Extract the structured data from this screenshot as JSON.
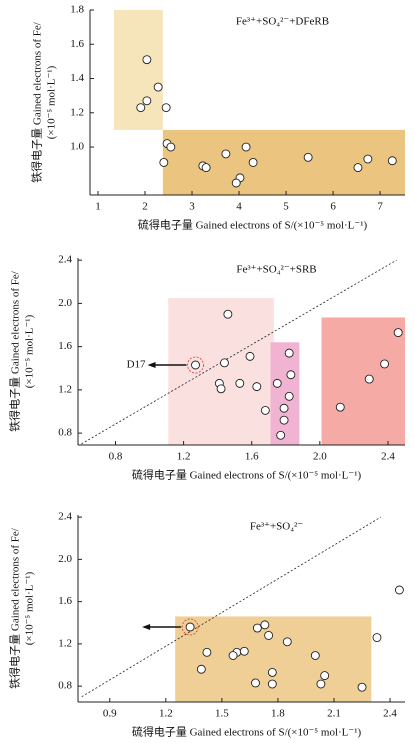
{
  "chart_data": [
    {
      "type": "scatter",
      "annotation": "Fe³⁺+SO₄²⁻+DFeRB",
      "xlabel": "硫得电子量 Gained electrons of S/(×10⁻⁵ mol·L⁻¹)",
      "ylabel": [
        "铁得电子量 Gained electrons of Fe/",
        "(×10⁻⁵ mol·L⁻¹)"
      ],
      "xlim": [
        0.83,
        7.53
      ],
      "ylim": [
        0.72,
        1.8
      ],
      "xticks": [
        1,
        2,
        3,
        4,
        5,
        6,
        7
      ],
      "yticks": [
        {
          "value": 1,
          "label": "1.0"
        },
        1.2,
        1.4,
        1.6,
        1.8
      ],
      "regions": [
        {
          "x": [
            1.34,
            2.38
          ],
          "y": [
            1.1,
            1.8
          ],
          "color": "#f6e4bb"
        },
        {
          "x": [
            2.38,
            7.53
          ],
          "y": [
            0.72,
            1.1
          ],
          "color": "#ebc57f"
        }
      ],
      "x": [
        2.04,
        2.28,
        2.04,
        1.91,
        2.45,
        2.47,
        2.55,
        2.4,
        3.23,
        3.3,
        3.72,
        4.15,
        4.3,
        4.02,
        3.94,
        5.47,
        6.53,
        6.74,
        7.26
      ],
      "values": [
        1.51,
        1.35,
        1.27,
        1.23,
        1.23,
        1.02,
        1.0,
        0.91,
        0.89,
        0.88,
        0.96,
        1.0,
        0.91,
        0.82,
        0.79,
        0.94,
        0.88,
        0.93,
        0.92
      ],
      "color": "#ffffff"
    },
    {
      "type": "scatter",
      "annotation": "Fe³⁺+SO₄²⁻+SRB",
      "xlabel": "硫得电子量 Gained electrons of S/(×10⁻⁵ mol·L⁻¹)",
      "ylabel": [
        "铁得电子量 Gained electrons of Fe/",
        "(×10⁻⁵ mol·L⁻¹)"
      ],
      "xlim": [
        0.58,
        2.5
      ],
      "ylim": [
        0.69,
        2.42
      ],
      "xticks": [
        0.8,
        1.2,
        1.6,
        {
          "value": 2,
          "label": "2.0"
        },
        2.4
      ],
      "yticks": [
        0.8,
        1.2,
        1.6,
        {
          "value": 2,
          "label": "2.0"
        },
        2.4
      ],
      "regions": [
        {
          "x": [
            1.11,
            1.73
          ],
          "y": [
            0.69,
            2.05
          ],
          "color": "#fbe0e0"
        },
        {
          "x": [
            1.71,
            1.88
          ],
          "y": [
            0.69,
            1.64
          ],
          "color": "#f1b3d2"
        },
        {
          "x": [
            2.01,
            2.5
          ],
          "y": [
            0.69,
            1.87
          ],
          "color": "#f6aaa5"
        }
      ],
      "reference_line": {
        "x": [
          0.6,
          2.45
        ],
        "y": [
          0.7,
          2.4
        ]
      },
      "point_label": "D17",
      "highlight": 15,
      "x": [
        1.46,
        1.44,
        1.59,
        1.41,
        1.53,
        1.42,
        1.63,
        1.82,
        1.83,
        1.75,
        1.82,
        1.68,
        1.79,
        1.79,
        1.77,
        1.27,
        2.12,
        2.29,
        2.38,
        2.46
      ],
      "values": [
        1.9,
        1.45,
        1.51,
        1.26,
        1.26,
        1.21,
        1.23,
        1.54,
        1.34,
        1.26,
        1.14,
        1.01,
        1.03,
        0.92,
        0.78,
        1.43,
        1.04,
        1.3,
        1.44,
        1.73
      ],
      "color": "#ffffff"
    },
    {
      "type": "scatter",
      "annotation": "Fe³⁺+SO₄²⁻",
      "xlabel": "硫得电子量 Gained electrons of S/(×10⁻⁵ mol·L⁻¹)",
      "ylabel": [
        "铁得电子量 Gained electrons of Fe/",
        "(×10⁻⁵ mol·L⁻¹)"
      ],
      "xlim": [
        0.73,
        2.48
      ],
      "ylim": [
        0.65,
        2.42
      ],
      "xticks": [
        0.9,
        1.2,
        1.5,
        1.8,
        2.1,
        2.4
      ],
      "yticks": [
        0.8,
        1.2,
        1.6,
        {
          "value": 2,
          "label": "2.0"
        },
        2.4
      ],
      "regions": [
        {
          "x": [
            1.25,
            2.3
          ],
          "y": [
            0.65,
            1.46
          ],
          "color": "#efcf96"
        }
      ],
      "reference_line": {
        "x": [
          0.75,
          2.35
        ],
        "y": [
          0.7,
          2.4
        ]
      },
      "highlight": 0,
      "x": [
        1.33,
        1.73,
        1.69,
        1.75,
        1.85,
        1.42,
        1.58,
        1.56,
        1.62,
        1.39,
        1.77,
        2.0,
        2.05,
        2.03,
        1.68,
        1.77,
        2.25,
        2.33,
        2.45
      ],
      "values": [
        1.36,
        1.38,
        1.35,
        1.28,
        1.22,
        1.12,
        1.12,
        1.09,
        1.13,
        0.96,
        0.93,
        1.09,
        0.9,
        0.82,
        0.83,
        0.82,
        0.79,
        1.26,
        1.71
      ],
      "color": "#ffffff"
    }
  ]
}
